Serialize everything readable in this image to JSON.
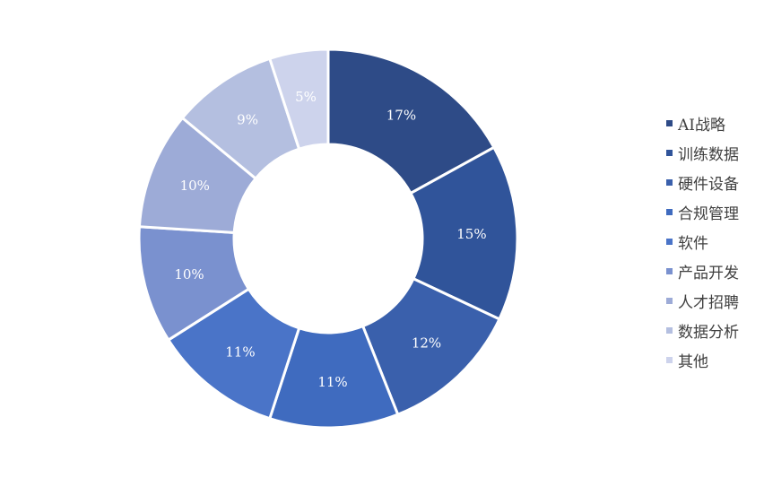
{
  "chart_data": {
    "type": "pie",
    "variant": "donut",
    "title": "",
    "categories": [
      "AI战略",
      "训练数据",
      "硬件设备",
      "合规管理",
      "软件",
      "产品开发",
      "人才招聘",
      "数据分析",
      "其他"
    ],
    "values": [
      17,
      15,
      12,
      11,
      11,
      10,
      10,
      9,
      5
    ],
    "labels": [
      "17%",
      "15%",
      "12%",
      "11%",
      "11%",
      "10%",
      "10%",
      "9%",
      "5%"
    ],
    "colors": [
      "#2e4b87",
      "#30549a",
      "#3a60ac",
      "#3f6bbf",
      "#4a74c8",
      "#7a91cf",
      "#9dabd7",
      "#b4bfe0",
      "#cdd3ec"
    ],
    "legend_position": "right"
  }
}
